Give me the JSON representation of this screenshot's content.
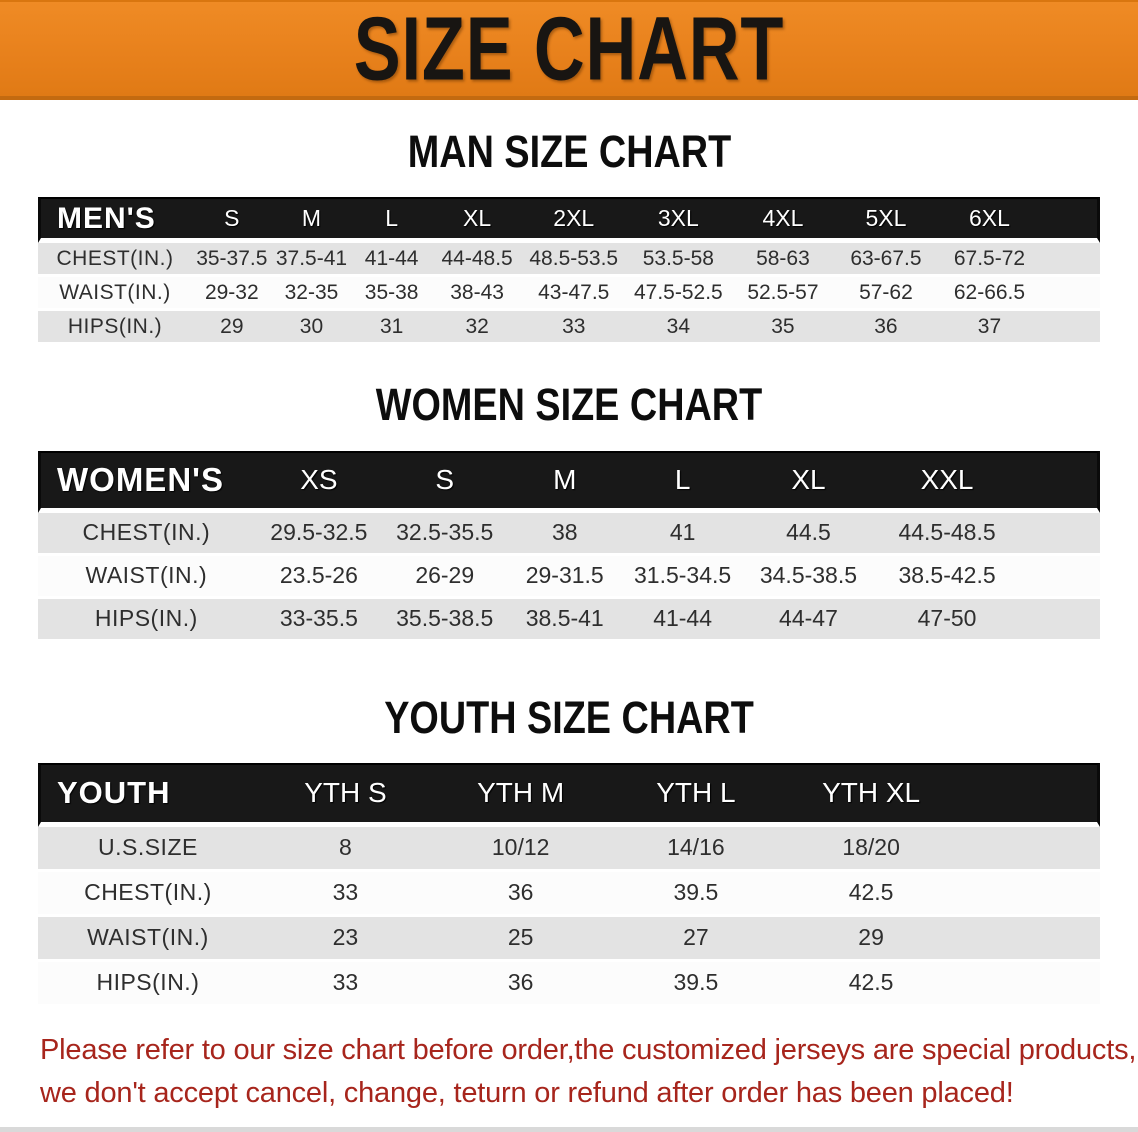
{
  "banner": {
    "title": "SIZE CHART"
  },
  "sections": [
    {
      "heading": "MAN SIZE CHART",
      "group_label": "MEN'S",
      "columns": [
        "S",
        "M",
        "L",
        "XL",
        "2XL",
        "3XL",
        "4XL",
        "5XL",
        "6XL"
      ],
      "rows": [
        {
          "label": "CHEST(IN.)",
          "values": [
            "35-37.5",
            "37.5-41",
            "41-44",
            "44-48.5",
            "48.5-53.5",
            "53.5-58",
            "58-63",
            "63-67.5",
            "67.5-72"
          ]
        },
        {
          "label": "WAIST(IN.)",
          "values": [
            "29-32",
            "32-35",
            "35-38",
            "38-43",
            "43-47.5",
            "47.5-52.5",
            "52.5-57",
            "57-62",
            "62-66.5"
          ]
        },
        {
          "label": "HIPS(IN.)",
          "values": [
            "29",
            "30",
            "31",
            "32",
            "33",
            "34",
            "35",
            "36",
            "37"
          ]
        }
      ]
    },
    {
      "heading": "WOMEN SIZE CHART",
      "group_label": "WOMEN'S",
      "columns": [
        "XS",
        "S",
        "M",
        "L",
        "XL",
        "XXL"
      ],
      "rows": [
        {
          "label": "CHEST(IN.)",
          "values": [
            "29.5-32.5",
            "32.5-35.5",
            "38",
            "41",
            "44.5",
            "44.5-48.5"
          ]
        },
        {
          "label": "WAIST(IN.)",
          "values": [
            "23.5-26",
            "26-29",
            "29-31.5",
            "31.5-34.5",
            "34.5-38.5",
            "38.5-42.5"
          ]
        },
        {
          "label": "HIPS(IN.)",
          "values": [
            "33-35.5",
            "35.5-38.5",
            "38.5-41",
            "41-44",
            "44-47",
            "47-50"
          ]
        }
      ]
    },
    {
      "heading": "YOUTH SIZE CHART",
      "group_label": "YOUTH",
      "columns": [
        "YTH S",
        "YTH M",
        "YTH L",
        "YTH XL"
      ],
      "rows": [
        {
          "label": "U.S.SIZE",
          "values": [
            "8",
            "10/12",
            "14/16",
            "18/20"
          ]
        },
        {
          "label": "CHEST(IN.)",
          "values": [
            "33",
            "36",
            "39.5",
            "42.5"
          ]
        },
        {
          "label": "WAIST(IN.)",
          "values": [
            "23",
            "25",
            "27",
            "29"
          ]
        },
        {
          "label": "HIPS(IN.)",
          "values": [
            "33",
            "36",
            "39.5",
            "42.5"
          ]
        }
      ]
    }
  ],
  "disclaimer": {
    "line1": "Please refer to our size chart before order,the customized jerseys are special products,",
    "line2": "we don't accept cancel, change, teturn or refund after order has been placed!"
  },
  "colors": {
    "banner_orange": "#E8811C",
    "banner_border": "#C36A10",
    "header_bar_black": "#181818",
    "row_gray": "#E3E3E3",
    "row_white": "#FCFCFC",
    "disclaimer_red": "#A7251C"
  }
}
